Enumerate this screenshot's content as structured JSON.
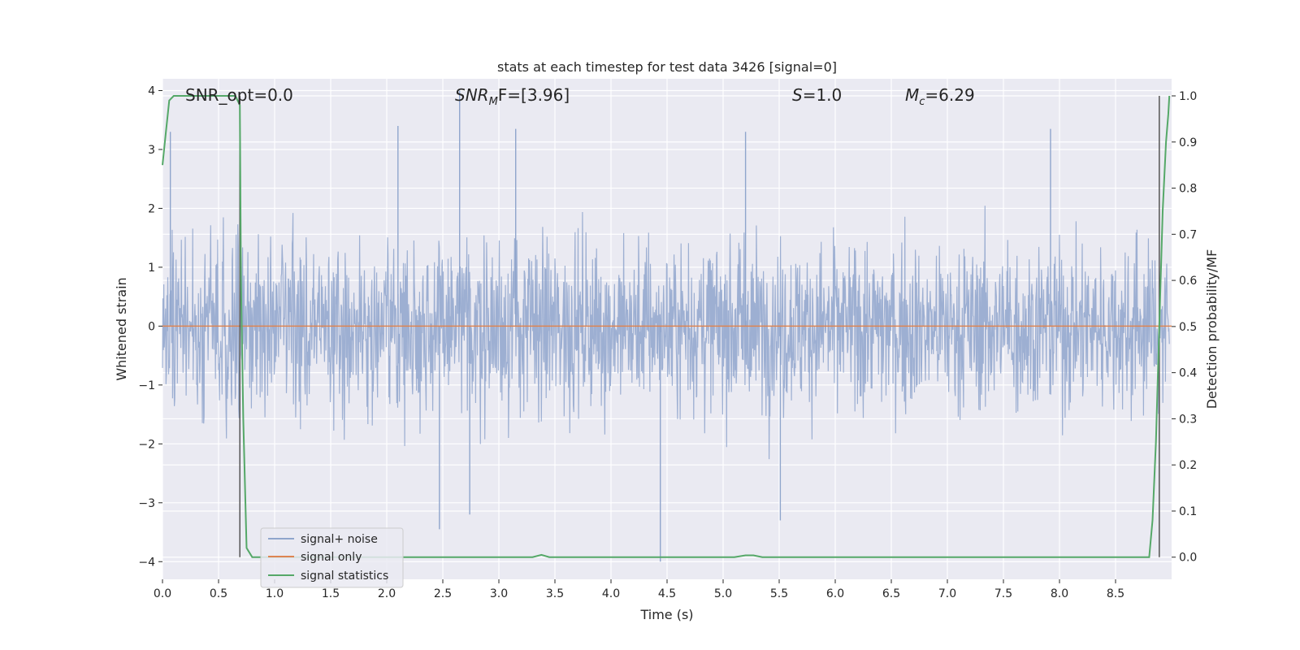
{
  "chart_data": {
    "type": "line",
    "title": "stats at each timestep for test data 3426 [signal=0]",
    "xlabel": "Time (s)",
    "ylabel": "Whitened strain",
    "ylabel_right": "Detection probability/MF",
    "xlim": [
      0.0,
      9.0
    ],
    "ylim": [
      -4.3,
      4.2
    ],
    "ylim_right": [
      -0.048,
      1.037
    ],
    "x_ticks": [
      "0.0",
      "0.5",
      "1.0",
      "1.5",
      "2.0",
      "2.5",
      "3.0",
      "3.5",
      "4.0",
      "4.5",
      "5.0",
      "5.5",
      "6.0",
      "6.5",
      "7.0",
      "7.5",
      "8.0",
      "8.5"
    ],
    "y_ticks": [
      "4",
      "3",
      "2",
      "1",
      "0",
      "−1",
      "−2",
      "−3",
      "−4"
    ],
    "y_ticks_right": [
      "1.0",
      "0.9",
      "0.8",
      "0.7",
      "0.6",
      "0.5",
      "0.4",
      "0.3",
      "0.2",
      "0.1",
      "0.0"
    ],
    "grid": true,
    "legend_position": "lower-left",
    "annotations": {
      "snr_opt": "SNR_opt=0.0",
      "snr_mf_main": "SNR",
      "snr_mf_sub": "M",
      "snr_mf_tail": "F=[3.96]",
      "s_main": "S",
      "s_tail": "=1.0",
      "mc_main": "M",
      "mc_sub": "c",
      "mc_tail": "=6.29"
    },
    "vertical_lines_x": [
      0.69,
      8.89
    ],
    "series": [
      {
        "name": "signal+ noise",
        "color": "#8fa5cc",
        "description_range": [
          -4.0,
          4.0
        ],
        "peaks": [
          [
            0.07,
            3.3
          ],
          [
            2.1,
            3.4
          ],
          [
            2.65,
            4.0
          ],
          [
            3.15,
            3.35
          ],
          [
            5.2,
            3.3
          ],
          [
            7.92,
            3.35
          ],
          [
            2.47,
            -3.45
          ],
          [
            4.44,
            -4.0
          ],
          [
            5.51,
            -3.3
          ],
          [
            2.74,
            -3.2
          ]
        ]
      },
      {
        "name": "signal only",
        "color": "#dd8452",
        "values_constant": 0.0
      },
      {
        "name": "signal statistics",
        "color": "#55a868",
        "axis": "right",
        "x": [
          0.0,
          0.03,
          0.06,
          0.1,
          0.15,
          0.25,
          0.4,
          0.55,
          0.65,
          0.69,
          0.7,
          0.72,
          0.75,
          0.8,
          1.0,
          2.0,
          3.0,
          3.3,
          3.38,
          3.45,
          3.5,
          4.0,
          5.0,
          5.1,
          5.2,
          5.27,
          5.35,
          5.45,
          6.0,
          7.0,
          8.0,
          8.8,
          8.83,
          8.86,
          8.89,
          8.92,
          8.95,
          8.97,
          8.98
        ],
        "values": [
          0.85,
          0.92,
          0.99,
          1.0,
          1.0,
          1.0,
          1.0,
          1.0,
          1.0,
          0.98,
          0.6,
          0.3,
          0.02,
          0.0,
          0.0,
          0.0,
          0.0,
          0.0,
          0.005,
          0.0,
          0.0,
          0.0,
          0.0,
          0.0,
          0.004,
          0.004,
          0.0,
          0.0,
          0.0,
          0.0,
          0.0,
          0.0,
          0.08,
          0.25,
          0.5,
          0.75,
          0.9,
          0.96,
          1.0
        ]
      }
    ]
  }
}
